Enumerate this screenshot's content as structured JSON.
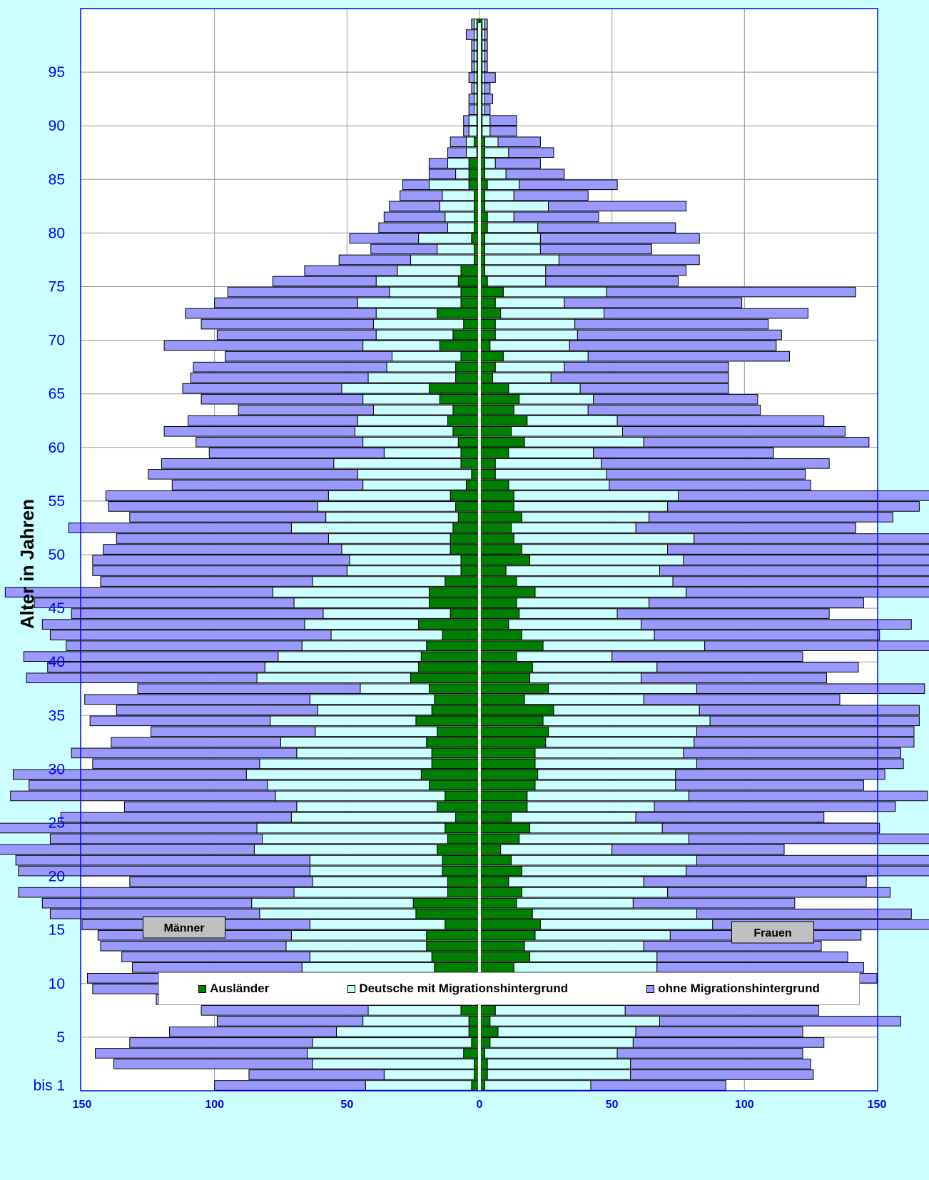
{
  "chart_data": {
    "type": "bar",
    "orientation": "horizontal",
    "layout": "population-pyramid",
    "ylabel": "Alter in Jahren",
    "xlabel": "",
    "xlim": [
      -150,
      150
    ],
    "x_ticks": [
      -150,
      -100,
      -50,
      0,
      50,
      100,
      150
    ],
    "x_tick_labels": [
      "150",
      "100",
      "50",
      "0",
      "50",
      "100",
      "150"
    ],
    "y_tick_labels": [
      {
        "age": 0,
        "label": "bis 1"
      },
      {
        "age": 5,
        "label": "5"
      },
      {
        "age": 10,
        "label": "10"
      },
      {
        "age": 15,
        "label": "15"
      },
      {
        "age": 20,
        "label": "20"
      },
      {
        "age": 25,
        "label": "25"
      },
      {
        "age": 30,
        "label": "30"
      },
      {
        "age": 35,
        "label": "35"
      },
      {
        "age": 40,
        "label": "40"
      },
      {
        "age": 45,
        "label": "45"
      },
      {
        "age": 50,
        "label": "50"
      },
      {
        "age": 55,
        "label": "55"
      },
      {
        "age": 60,
        "label": "60"
      },
      {
        "age": 65,
        "label": "65"
      },
      {
        "age": 70,
        "label": "70"
      },
      {
        "age": 75,
        "label": "75"
      },
      {
        "age": 80,
        "label": "80"
      },
      {
        "age": 85,
        "label": "85"
      },
      {
        "age": 90,
        "label": "90"
      },
      {
        "age": 95,
        "label": "95"
      }
    ],
    "ages": [
      0,
      1,
      2,
      3,
      4,
      5,
      6,
      7,
      8,
      9,
      10,
      11,
      12,
      13,
      14,
      15,
      16,
      17,
      18,
      19,
      20,
      21,
      22,
      23,
      24,
      25,
      26,
      27,
      28,
      29,
      30,
      31,
      32,
      33,
      34,
      35,
      36,
      37,
      38,
      39,
      40,
      41,
      42,
      43,
      44,
      45,
      46,
      47,
      48,
      49,
      50,
      51,
      52,
      53,
      54,
      55,
      56,
      57,
      58,
      59,
      60,
      61,
      62,
      63,
      64,
      65,
      66,
      67,
      68,
      69,
      70,
      71,
      72,
      73,
      74,
      75,
      76,
      77,
      78,
      79,
      80,
      81,
      82,
      83,
      84,
      85,
      86,
      87,
      88,
      89,
      90,
      91,
      92,
      93,
      94,
      95,
      96,
      97,
      98,
      99
    ],
    "series_colors": {
      "auslaender": "#008000",
      "mit_migration": "#ccffff",
      "ohne_migration": "#9999ff"
    },
    "groups": [
      {
        "label": "Männer",
        "series": [
          {
            "name": "Ausländer",
            "values": [
              3,
              2,
              2,
              6,
              3,
              4,
              4,
              7,
              5,
              10,
              22,
              17,
              18,
              20,
              20,
              13,
              24,
              25,
              12,
              12,
              14,
              14,
              16,
              12,
              13,
              9,
              16,
              13,
              19,
              22,
              18,
              18,
              20,
              16,
              24,
              18,
              17,
              19,
              26,
              23,
              22,
              20,
              14,
              23,
              11,
              19,
              19,
              13,
              7,
              7,
              11,
              11,
              10,
              8,
              9,
              11,
              5,
              3,
              7,
              7,
              8,
              10,
              12,
              10,
              15,
              19,
              9,
              9,
              7,
              15,
              10,
              6,
              16,
              7,
              7,
              8,
              7,
              2,
              2,
              3,
              2,
              2,
              2,
              2,
              4,
              4,
              4,
              1,
              2,
              1,
              1,
              1,
              1,
              1,
              1,
              1,
              1,
              1,
              1,
              1
            ]
          },
          {
            "name": "Deutsche mit Migrationshintergrund",
            "values": [
              40,
              34,
              61,
              59,
              60,
              50,
              40,
              35,
              43,
              54,
              59,
              50,
              46,
              53,
              51,
              51,
              59,
              61,
              58,
              51,
              50,
              50,
              69,
              70,
              71,
              62,
              53,
              64,
              61,
              66,
              65,
              51,
              55,
              46,
              55,
              43,
              47,
              26,
              58,
              58,
              54,
              47,
              42,
              43,
              48,
              51,
              59,
              50,
              43,
              42,
              41,
              46,
              61,
              50,
              52,
              46,
              39,
              43,
              48,
              29,
              36,
              37,
              34,
              30,
              29,
              33,
              33,
              26,
              26,
              29,
              29,
              34,
              23,
              39,
              27,
              31,
              24,
              24,
              14,
              20,
              10,
              11,
              13,
              12,
              15,
              5,
              8,
              4,
              3,
              3,
              3,
              1,
              1,
              1,
              1,
              1,
              1,
              1,
              1,
              1
            ]
          },
          {
            "name": "ohne Migrationshintergrund",
            "values": [
              57,
              51,
              75,
              80,
              69,
              63,
              55,
              63,
              74,
              82,
              67,
              64,
              71,
              70,
              73,
              86,
              79,
              79,
              104,
              69,
              110,
              111,
              98,
              80,
              98,
              87,
              65,
              100,
              90,
              88,
              63,
              85,
              64,
              62,
              68,
              76,
              85,
              84,
              87,
              82,
              96,
              89,
              106,
              99,
              95,
              98,
              101,
              80,
              96,
              97,
              90,
              80,
              84,
              74,
              79,
              84,
              72,
              79,
              65,
              66,
              63,
              72,
              64,
              51,
              61,
              60,
              67,
              73,
              63,
              75,
              60,
              65,
              72,
              54,
              61,
              39,
              35,
              27,
              25,
              26,
              26,
              23,
              19,
              16,
              10,
              10,
              7,
              7,
              6,
              2,
              2,
              2,
              2,
              1,
              2,
              1,
              1,
              1,
              3,
              1
            ]
          }
        ]
      },
      {
        "label": "Frauen",
        "series": [
          {
            "name": "Ausländer",
            "values": [
              2,
              3,
              3,
              2,
              4,
              7,
              4,
              6,
              4,
              8,
              17,
              13,
              19,
              17,
              21,
              23,
              20,
              14,
              16,
              11,
              16,
              12,
              8,
              15,
              19,
              12,
              18,
              18,
              21,
              22,
              21,
              21,
              25,
              26,
              24,
              28,
              17,
              26,
              19,
              20,
              14,
              24,
              16,
              11,
              15,
              14,
              21,
              14,
              10,
              19,
              16,
              13,
              12,
              16,
              13,
              13,
              11,
              6,
              6,
              11,
              17,
              12,
              18,
              13,
              15,
              11,
              5,
              6,
              9,
              4,
              6,
              6,
              8,
              6,
              9,
              3,
              2,
              2,
              2,
              2,
              3,
              3,
              2,
              2,
              3,
              2,
              2,
              2,
              2,
              1,
              1,
              1,
              1,
              1,
              1,
              1,
              1,
              1,
              1,
              1
            ]
          },
          {
            "name": "Deutsche mit Migrationshintergrund",
            "values": [
              40,
              54,
              54,
              50,
              54,
              52,
              64,
              49,
              47,
              51,
              58,
              54,
              48,
              45,
              51,
              65,
              62,
              44,
              55,
              51,
              62,
              70,
              42,
              64,
              50,
              47,
              48,
              61,
              53,
              52,
              61,
              56,
              56,
              56,
              63,
              55,
              45,
              56,
              42,
              47,
              36,
              61,
              50,
              50,
              37,
              50,
              57,
              59,
              58,
              58,
              55,
              68,
              47,
              48,
              58,
              62,
              38,
              42,
              40,
              32,
              45,
              42,
              34,
              28,
              28,
              27,
              22,
              26,
              32,
              30,
              31,
              30,
              39,
              26,
              39,
              22,
              23,
              28,
              21,
              21,
              19,
              10,
              24,
              11,
              12,
              8,
              4,
              9,
              5,
              3,
              3,
              1,
              1,
              1,
              1,
              1,
              1,
              1,
              1,
              1
            ]
          },
          {
            "name": "ohne Migrationshintergrund",
            "values": [
              51,
              69,
              68,
              70,
              72,
              63,
              91,
              73,
              68,
              51,
              75,
              78,
              72,
              67,
              72,
              86,
              81,
              61,
              84,
              84,
              94,
              106,
              65,
              103,
              82,
              71,
              91,
              90,
              71,
              79,
              78,
              82,
              83,
              82,
              79,
              83,
              74,
              86,
              70,
              76,
              72,
              105,
              85,
              102,
              80,
              81,
              102,
              99,
              106,
              98,
              117,
              93,
              83,
              92,
              95,
              96,
              76,
              75,
              86,
              68,
              85,
              84,
              78,
              65,
              62,
              56,
              67,
              62,
              76,
              78,
              77,
              73,
              77,
              67,
              94,
              50,
              53,
              53,
              42,
              60,
              52,
              32,
              52,
              28,
              37,
              22,
              17,
              17,
              16,
              10,
              10,
              2,
              3,
              2,
              4,
              1,
              1,
              1,
              1,
              1
            ]
          }
        ]
      }
    ],
    "legend_position": "bottom",
    "grid": true
  },
  "legend": {
    "items": [
      {
        "label": "Ausländer",
        "color": "#008000"
      },
      {
        "label": "Deutsche mit Migrationshintergrund",
        "color": "#ccffff"
      },
      {
        "label": "ohne Migrationshintergrund",
        "color": "#9999ff"
      }
    ]
  },
  "colors": {
    "background": "#ccffff",
    "plot_background": "#ffffff",
    "axis": "#0000ff",
    "grid": "#999999"
  }
}
